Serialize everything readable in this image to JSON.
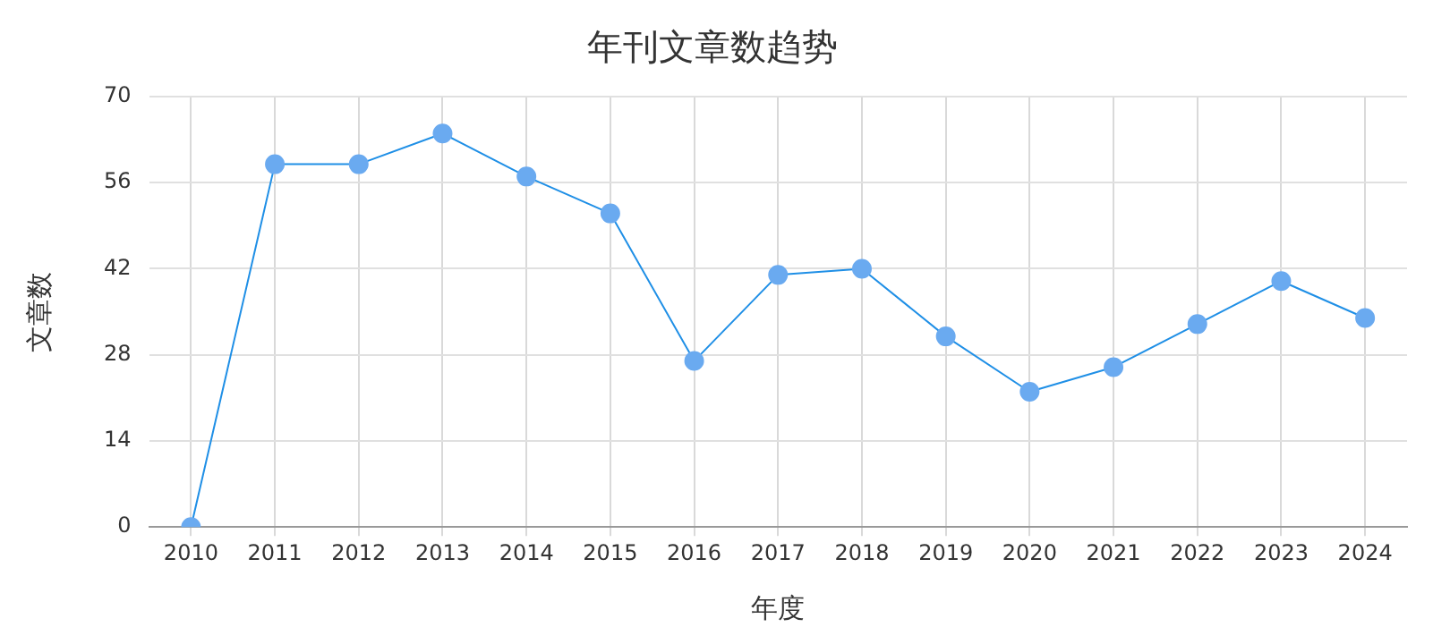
{
  "chart_data": {
    "type": "line",
    "title": "年刊文章数趋势",
    "xlabel": "年度",
    "ylabel": "文章数",
    "categories": [
      "2010",
      "2011",
      "2012",
      "2013",
      "2014",
      "2015",
      "2016",
      "2017",
      "2018",
      "2019",
      "2020",
      "2021",
      "2022",
      "2023",
      "2024"
    ],
    "series": [
      {
        "color": "#1f8fe6",
        "values": [
          0,
          59,
          59,
          64,
          57,
          51,
          27,
          41,
          42,
          31,
          22,
          26,
          33,
          40,
          34
        ]
      }
    ],
    "ylim": [
      0,
      70
    ],
    "yticks": [
      0,
      14,
      28,
      42,
      56,
      70
    ],
    "grid": true,
    "legend": false,
    "marker": "circle",
    "line_style": "solid"
  }
}
